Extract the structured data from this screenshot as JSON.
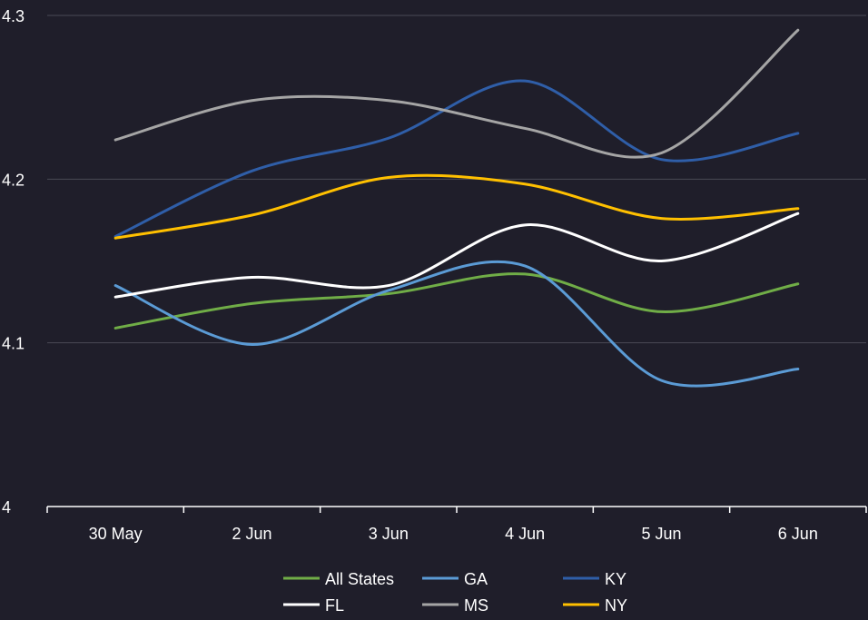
{
  "chart_data": {
    "type": "line",
    "title": "",
    "xlabel": "",
    "ylabel": "",
    "categories": [
      "30 May",
      "2 Jun",
      "3 Jun",
      "4 Jun",
      "5 Jun",
      "6 Jun"
    ],
    "ylim": [
      4,
      4.3
    ],
    "yticks": [
      "4",
      "4.1",
      "4.2",
      "4.3"
    ],
    "grid": "horizontal",
    "legend_position": "bottom",
    "series": [
      {
        "name": "All States",
        "color": "#70ad47",
        "values": [
          4.109,
          4.124,
          4.13,
          4.142,
          4.119,
          4.136
        ]
      },
      {
        "name": "GA",
        "color": "#5b9bd5",
        "values": [
          4.135,
          4.099,
          4.132,
          4.147,
          4.077,
          4.084
        ]
      },
      {
        "name": "KY",
        "color": "#2f5ea8",
        "values": [
          4.165,
          4.205,
          4.225,
          4.26,
          4.212,
          4.228
        ]
      },
      {
        "name": "FL",
        "color": "#ffffff",
        "values": [
          4.128,
          4.14,
          4.135,
          4.172,
          4.15,
          4.179
        ]
      },
      {
        "name": "MS",
        "color": "#a5a5a5",
        "values": [
          4.224,
          4.248,
          4.248,
          4.231,
          4.216,
          4.291
        ]
      },
      {
        "name": "NY",
        "color": "#ffc000",
        "values": [
          4.164,
          4.178,
          4.201,
          4.197,
          4.176,
          4.182
        ]
      }
    ]
  }
}
